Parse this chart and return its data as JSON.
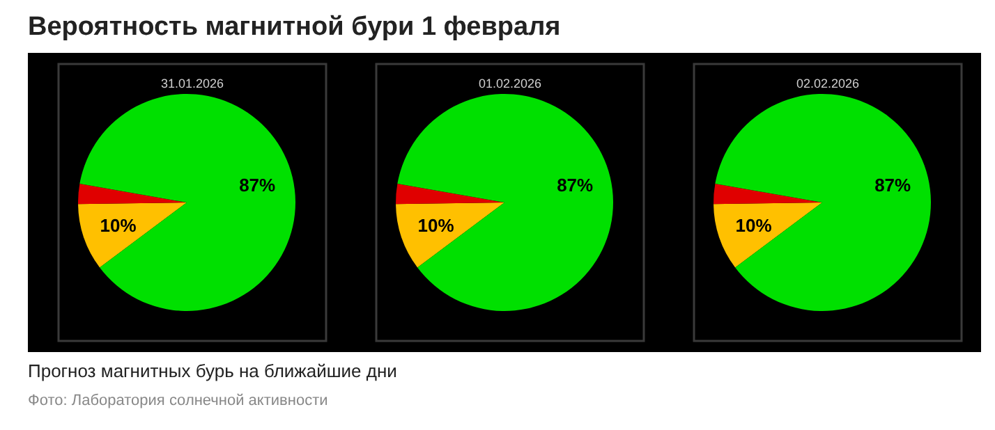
{
  "chart_data": [
    {
      "type": "pie",
      "title": "31.01.2026",
      "categories": [
        null,
        null,
        null
      ],
      "values": [
        10,
        3,
        87
      ],
      "colors": [
        "#ffc000",
        "#e00000",
        "#00e000"
      ],
      "value_labels": [
        "10%",
        null,
        "87%"
      ],
      "annotations": [
        "Вероятность магнитной бури 1 февраля",
        "Прогноз магнитных бурь на ближайшие дни",
        "Фото: Лаборатория солнечной активности"
      ]
    },
    {
      "type": "pie",
      "title": "01.02.2026",
      "categories": [
        null,
        null,
        null
      ],
      "values": [
        10,
        3,
        87
      ],
      "colors": [
        "#ffc000",
        "#e00000",
        "#00e000"
      ],
      "value_labels": [
        "10%",
        null,
        "87%"
      ]
    },
    {
      "type": "pie",
      "title": "02.02.2026",
      "categories": [
        null,
        null,
        null
      ],
      "values": [
        10,
        3,
        87
      ],
      "colors": [
        "#ffc000",
        "#e00000",
        "#00e000"
      ],
      "value_labels": [
        "10%",
        null,
        "87%"
      ]
    }
  ]
}
